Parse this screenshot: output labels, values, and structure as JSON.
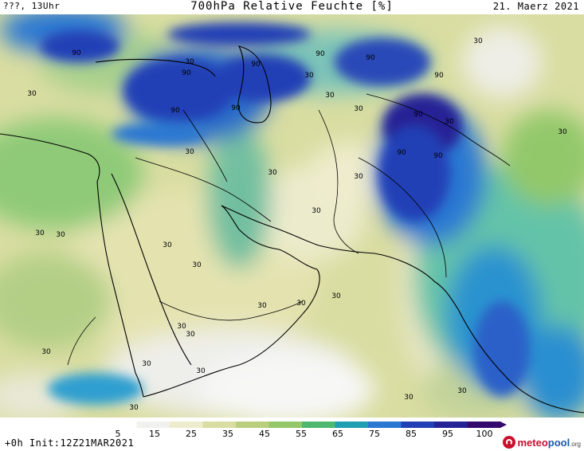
{
  "header": {
    "left": "???, 13Uhr",
    "title": "700hPa Relative Feuchte [%]",
    "date": "21. Maerz 2021"
  },
  "footer": {
    "run_info": "+0h Init:12Z21MAR2021",
    "logo": {
      "meteo": "meteo",
      "pool": "pool",
      "tld": ".org"
    }
  },
  "colorbar": {
    "ticks": [
      "5",
      "15",
      "25",
      "35",
      "45",
      "55",
      "65",
      "75",
      "85",
      "95",
      "100"
    ],
    "colors": [
      "#ffffff",
      "#f1f1ef",
      "#eeeccc",
      "#d9dda1",
      "#b9cf7e",
      "#93c86a",
      "#4fb86f",
      "#1f9fb1",
      "#2a78d2",
      "#2240b6",
      "#252395",
      "#340a6e"
    ]
  },
  "map": {
    "humidity_labels": [
      "90",
      "90",
      "90",
      "90",
      "90",
      "90",
      "90",
      "90",
      "90",
      "90",
      "90",
      "30",
      "30",
      "30",
      "30",
      "30",
      "30",
      "30",
      "30",
      "30",
      "30",
      "30",
      "30",
      "30",
      "30",
      "30",
      "30",
      "30",
      "30",
      "30",
      "30",
      "30",
      "30",
      "30",
      "30",
      "30",
      "30",
      "30"
    ]
  }
}
